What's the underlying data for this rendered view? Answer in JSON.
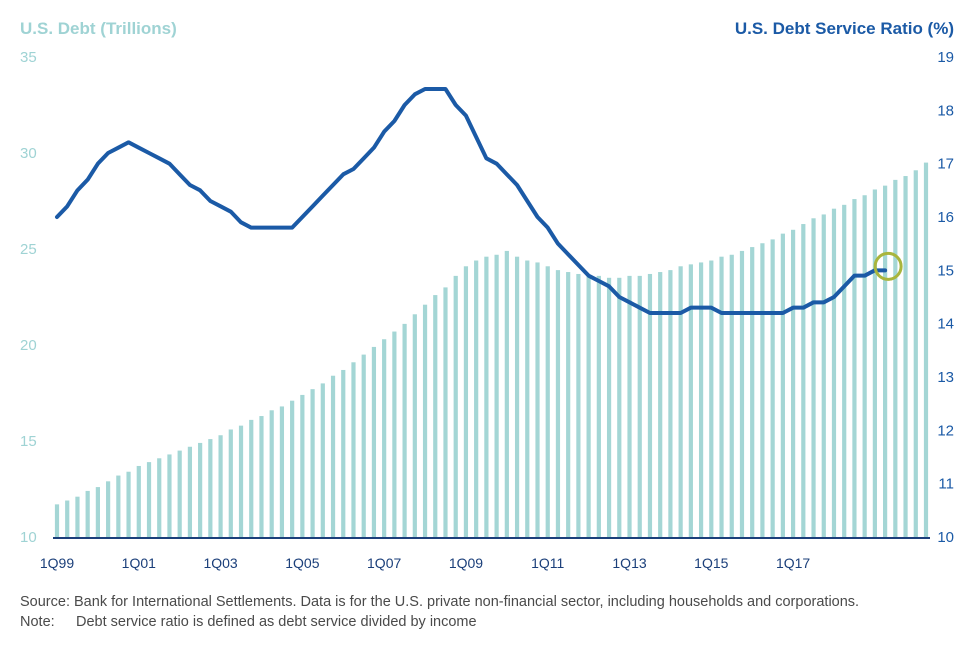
{
  "chart_data": {
    "type": "bar+line",
    "left_axis_title": "U.S. Debt (Trillions)",
    "right_axis_title": "U.S. Debt Service Ratio (%)",
    "left_ticks": [
      "35",
      "30",
      "25",
      "20",
      "15",
      "10"
    ],
    "right_ticks": [
      "19",
      "18",
      "17",
      "16",
      "15",
      "14",
      "13",
      "12",
      "11",
      "10"
    ],
    "left_ylim": [
      10,
      35
    ],
    "right_ylim": [
      10,
      19
    ],
    "x_labels": [
      "1Q99",
      "1Q01",
      "1Q03",
      "1Q05",
      "1Q07",
      "1Q09",
      "1Q11",
      "1Q13",
      "1Q15",
      "1Q17"
    ],
    "series": [
      {
        "name": "U.S. Debt (Trillions)",
        "kind": "bar",
        "axis": "left",
        "values": [
          11.7,
          11.9,
          12.1,
          12.4,
          12.6,
          12.9,
          13.2,
          13.4,
          13.7,
          13.9,
          14.1,
          14.3,
          14.5,
          14.7,
          14.9,
          15.1,
          15.3,
          15.6,
          15.8,
          16.1,
          16.3,
          16.6,
          16.8,
          17.1,
          17.4,
          17.7,
          18.0,
          18.4,
          18.7,
          19.1,
          19.5,
          19.9,
          20.3,
          20.7,
          21.1,
          21.6,
          22.1,
          22.6,
          23.0,
          23.6,
          24.1,
          24.4,
          24.6,
          24.7,
          24.9,
          24.6,
          24.4,
          24.3,
          24.1,
          23.9,
          23.8,
          23.7,
          23.6,
          23.6,
          23.5,
          23.5,
          23.6,
          23.6,
          23.7,
          23.8,
          23.9,
          24.1,
          24.2,
          24.3,
          24.4,
          24.6,
          24.7,
          24.9,
          25.1,
          25.3,
          25.5,
          25.8,
          26.0,
          26.3,
          26.6,
          26.8,
          27.1,
          27.3,
          27.6,
          27.8,
          28.1,
          28.3,
          28.6,
          28.8,
          29.1,
          29.5
        ]
      },
      {
        "name": "U.S. Debt Service Ratio (%)",
        "kind": "line",
        "axis": "right",
        "values": [
          [
            0,
            16.0
          ],
          [
            1,
            16.2
          ],
          [
            2,
            16.5
          ],
          [
            3,
            16.7
          ],
          [
            4,
            17.0
          ],
          [
            5,
            17.2
          ],
          [
            6,
            17.3
          ],
          [
            7,
            17.4
          ],
          [
            8,
            17.3
          ],
          [
            9,
            17.2
          ],
          [
            10,
            17.1
          ],
          [
            11,
            17.0
          ],
          [
            12,
            16.8
          ],
          [
            13,
            16.6
          ],
          [
            14,
            16.5
          ],
          [
            15,
            16.3
          ],
          [
            16,
            16.2
          ],
          [
            17,
            16.1
          ],
          [
            18,
            15.9
          ],
          [
            19,
            15.8
          ],
          [
            20,
            15.8
          ],
          [
            21,
            15.8
          ],
          [
            22,
            15.8
          ],
          [
            23,
            15.8
          ],
          [
            24,
            16.0
          ],
          [
            25,
            16.2
          ],
          [
            26,
            16.4
          ],
          [
            27,
            16.6
          ],
          [
            28,
            16.8
          ],
          [
            29,
            16.9
          ],
          [
            30,
            17.1
          ],
          [
            31,
            17.3
          ],
          [
            32,
            17.6
          ],
          [
            33,
            17.8
          ],
          [
            34,
            18.1
          ],
          [
            35,
            18.3
          ],
          [
            36,
            18.4
          ],
          [
            37,
            18.4
          ],
          [
            38,
            18.4
          ],
          [
            39,
            18.1
          ],
          [
            40,
            17.9
          ],
          [
            41,
            17.5
          ],
          [
            42,
            17.1
          ],
          [
            43,
            17.0
          ],
          [
            44,
            16.8
          ],
          [
            45,
            16.6
          ],
          [
            46,
            16.3
          ],
          [
            47,
            16.0
          ],
          [
            48,
            15.8
          ],
          [
            49,
            15.5
          ],
          [
            50,
            15.3
          ],
          [
            51,
            15.1
          ],
          [
            52,
            14.9
          ],
          [
            53,
            14.8
          ],
          [
            54,
            14.7
          ],
          [
            55,
            14.5
          ],
          [
            56,
            14.4
          ],
          [
            57,
            14.3
          ],
          [
            58,
            14.2
          ],
          [
            59,
            14.2
          ],
          [
            60,
            14.2
          ],
          [
            61,
            14.2
          ],
          [
            62,
            14.3
          ],
          [
            63,
            14.3
          ],
          [
            64,
            14.3
          ],
          [
            65,
            14.2
          ],
          [
            66,
            14.2
          ],
          [
            67,
            14.2
          ],
          [
            68,
            14.2
          ],
          [
            69,
            14.2
          ],
          [
            70,
            14.2
          ],
          [
            71,
            14.2
          ],
          [
            72,
            14.3
          ],
          [
            73,
            14.3
          ],
          [
            74,
            14.4
          ],
          [
            75,
            14.4
          ],
          [
            76,
            14.5
          ],
          [
            77,
            14.7
          ],
          [
            78,
            14.9
          ],
          [
            79,
            14.9
          ],
          [
            80,
            15.0
          ],
          [
            81,
            15.0
          ]
        ]
      }
    ],
    "highlight": {
      "series": "U.S. Debt Service Ratio (%)",
      "index": 81
    }
  },
  "notes": {
    "source_label": "Source:",
    "source_text": "Bank for International Settlements.  Data is for the U.S. private non-financial sector, including households and corporations.",
    "note_label": "Note:",
    "note_text": "Debt service ratio is defined as debt service divided by income"
  },
  "colors": {
    "bar": "#a4d6d5",
    "line": "#1b5aa6",
    "highlight": "#a9b53d",
    "axis": "#1b3f7a"
  }
}
